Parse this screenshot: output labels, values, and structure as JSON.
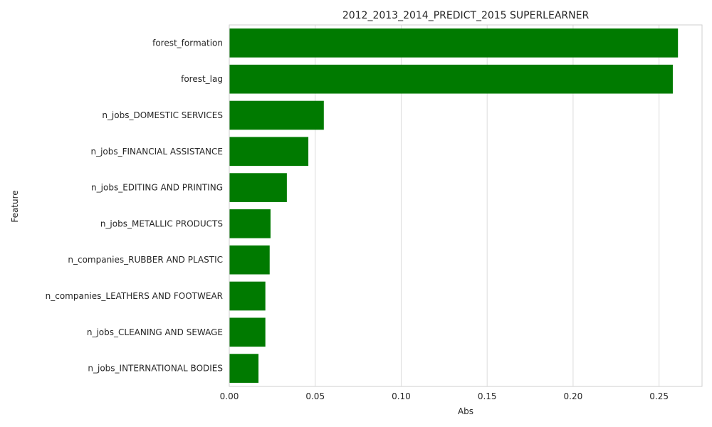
{
  "chart_data": {
    "type": "bar",
    "orientation": "horizontal",
    "title": "2012_2013_2014_PREDICT_2015 SUPERLEARNER",
    "xlabel": "Abs",
    "ylabel": "Feature",
    "xlim": [
      0,
      0.275
    ],
    "xticks": [
      0.0,
      0.05,
      0.1,
      0.15,
      0.2,
      0.25
    ],
    "xtick_labels": [
      "0.00",
      "0.05",
      "0.10",
      "0.15",
      "0.20",
      "0.25"
    ],
    "grid": "vertical",
    "bar_color": "#007a00",
    "categories": [
      "forest_formation",
      "forest_lag",
      "n_jobs_DOMESTIC SERVICES",
      "n_jobs_FINANCIAL ASSISTANCE",
      "n_jobs_EDITING AND PRINTING",
      "n_jobs_METALLIC PRODUCTS",
      "n_companies_RUBBER AND PLASTIC",
      "n_companies_LEATHERS AND FOOTWEAR",
      "n_jobs_CLEANING AND SEWAGE",
      "n_jobs_INTERNATIONAL BODIES"
    ],
    "values": [
      0.261,
      0.258,
      0.055,
      0.046,
      0.0335,
      0.024,
      0.0235,
      0.021,
      0.021,
      0.017
    ]
  }
}
